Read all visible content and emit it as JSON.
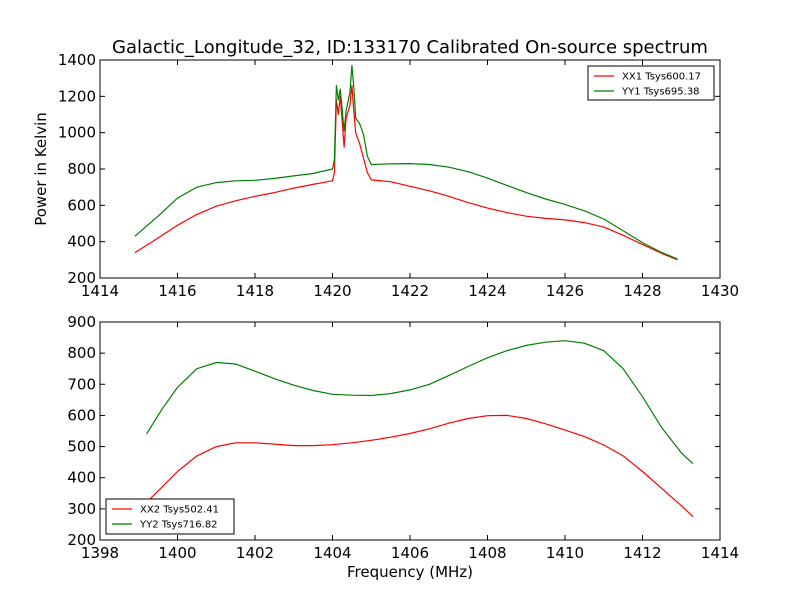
{
  "figure_title": "Galactic_Longitude_32, ID:133170 Calibrated On-source spectrum",
  "chart_data": [
    {
      "type": "line",
      "ylabel": "Power in Kelvin",
      "xlabel": "",
      "xlim": [
        1414,
        1430
      ],
      "ylim": [
        200,
        1400
      ],
      "xticks": [
        "1414",
        "1416",
        "1418",
        "1420",
        "1422",
        "1424",
        "1426",
        "1428",
        "1430"
      ],
      "yticks": [
        "200",
        "400",
        "600",
        "800",
        "1000",
        "1200",
        "1400"
      ],
      "legend_position": "upper right",
      "grid": false,
      "series": [
        {
          "name": "XX1 Tsys600.17",
          "color": "#ff0000",
          "x": [
            1414.9,
            1415.5,
            1416.0,
            1416.5,
            1417.0,
            1417.5,
            1418.0,
            1418.5,
            1419.0,
            1419.5,
            1420.0,
            1420.05,
            1420.1,
            1420.15,
            1420.2,
            1420.3,
            1420.35,
            1420.45,
            1420.5,
            1420.55,
            1420.6,
            1420.7,
            1420.8,
            1420.9,
            1421.0,
            1421.5,
            1422.0,
            1422.5,
            1423.0,
            1423.5,
            1424.0,
            1424.5,
            1425.0,
            1425.5,
            1426.0,
            1426.5,
            1427.0,
            1427.5,
            1428.0,
            1428.5,
            1428.9
          ],
          "y": [
            340,
            420,
            490,
            550,
            595,
            625,
            650,
            670,
            695,
            715,
            735,
            780,
            1180,
            1100,
            1200,
            920,
            1080,
            1150,
            1260,
            1120,
            1000,
            940,
            860,
            780,
            740,
            730,
            705,
            680,
            650,
            615,
            585,
            560,
            540,
            528,
            520,
            505,
            480,
            435,
            385,
            335,
            300
          ]
        },
        {
          "name": "YY1 Tsys695.38",
          "color": "#008000",
          "x": [
            1414.9,
            1415.5,
            1416.0,
            1416.5,
            1417.0,
            1417.5,
            1418.0,
            1418.5,
            1419.0,
            1419.5,
            1420.0,
            1420.05,
            1420.1,
            1420.15,
            1420.2,
            1420.3,
            1420.35,
            1420.45,
            1420.5,
            1420.55,
            1420.6,
            1420.7,
            1420.8,
            1420.9,
            1421.0,
            1421.5,
            1422.0,
            1422.5,
            1423.0,
            1423.5,
            1424.0,
            1424.5,
            1425.0,
            1425.5,
            1426.0,
            1426.5,
            1427.0,
            1427.5,
            1428.0,
            1428.5,
            1428.9
          ],
          "y": [
            430,
            540,
            640,
            700,
            725,
            735,
            738,
            748,
            762,
            775,
            800,
            850,
            1260,
            1180,
            1240,
            1010,
            1120,
            1220,
            1370,
            1250,
            1080,
            1050,
            990,
            870,
            825,
            828,
            830,
            825,
            810,
            785,
            750,
            710,
            670,
            635,
            605,
            570,
            525,
            460,
            395,
            340,
            305
          ]
        }
      ]
    },
    {
      "type": "line",
      "xlabel": "Frequency (MHz)",
      "ylabel": "",
      "xlim": [
        1398,
        1414
      ],
      "ylim": [
        200,
        900
      ],
      "xticks": [
        "1398",
        "1400",
        "1402",
        "1404",
        "1406",
        "1408",
        "1410",
        "1412",
        "1414"
      ],
      "yticks": [
        "200",
        "300",
        "400",
        "500",
        "600",
        "700",
        "800",
        "900"
      ],
      "legend_position": "lower left",
      "grid": false,
      "series": [
        {
          "name": "XX2 Tsys502.41",
          "color": "#ff0000",
          "x": [
            1399.2,
            1399.6,
            1400.0,
            1400.5,
            1401.0,
            1401.5,
            1402.0,
            1402.5,
            1403.0,
            1403.5,
            1404.0,
            1404.5,
            1405.0,
            1405.5,
            1406.0,
            1406.5,
            1407.0,
            1407.5,
            1408.0,
            1408.5,
            1409.0,
            1409.5,
            1410.0,
            1410.5,
            1411.0,
            1411.5,
            1412.0,
            1412.5,
            1413.0,
            1413.3
          ],
          "y": [
            320,
            370,
            420,
            470,
            500,
            512,
            512,
            508,
            503,
            503,
            506,
            512,
            520,
            530,
            542,
            557,
            575,
            590,
            599,
            600,
            590,
            573,
            553,
            532,
            505,
            470,
            420,
            365,
            310,
            275
          ]
        },
        {
          "name": "YY2 Tsys716.82",
          "color": "#008000",
          "x": [
            1399.2,
            1399.6,
            1400.0,
            1400.5,
            1401.0,
            1401.5,
            1402.0,
            1402.5,
            1403.0,
            1403.5,
            1404.0,
            1404.5,
            1405.0,
            1405.5,
            1406.0,
            1406.5,
            1407.0,
            1407.5,
            1408.0,
            1408.5,
            1409.0,
            1409.5,
            1410.0,
            1410.5,
            1411.0,
            1411.5,
            1412.0,
            1412.5,
            1413.0,
            1413.3
          ],
          "y": [
            540,
            620,
            690,
            750,
            770,
            765,
            742,
            718,
            697,
            680,
            668,
            665,
            664,
            670,
            682,
            700,
            728,
            757,
            785,
            808,
            825,
            835,
            840,
            832,
            808,
            750,
            660,
            560,
            480,
            445
          ]
        }
      ]
    }
  ]
}
